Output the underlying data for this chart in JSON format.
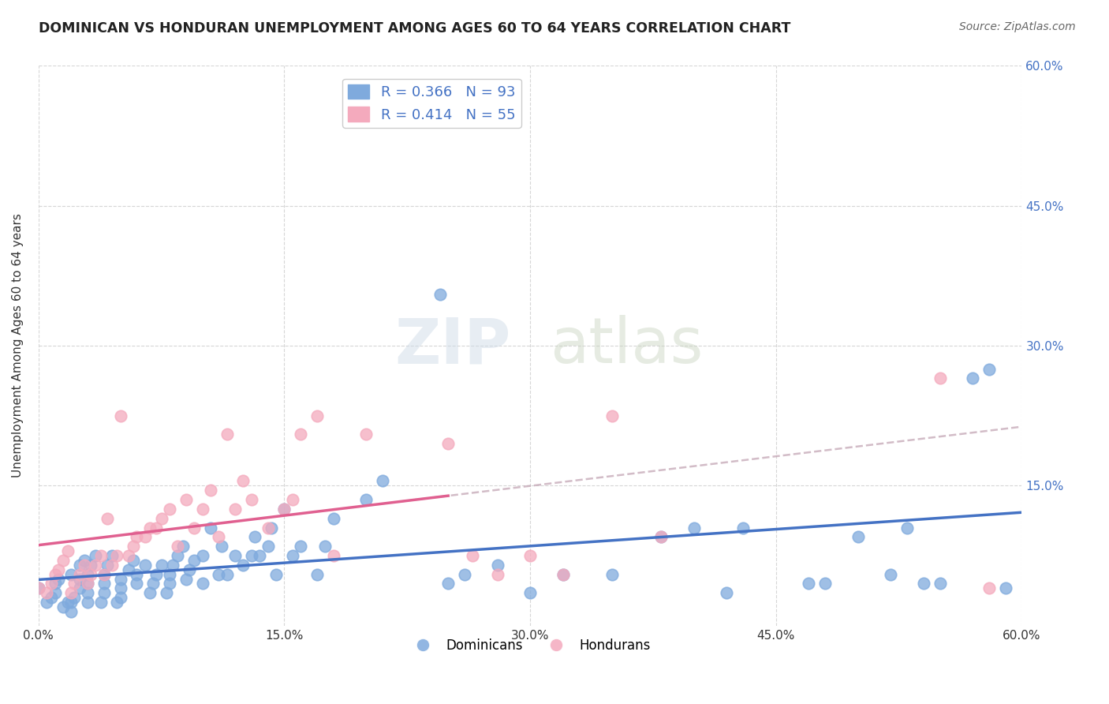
{
  "title": "DOMINICAN VS HONDURAN UNEMPLOYMENT AMONG AGES 60 TO 64 YEARS CORRELATION CHART",
  "source": "Source: ZipAtlas.com",
  "ylabel": "Unemployment Among Ages 60 to 64 years",
  "xlim": [
    0.0,
    0.6
  ],
  "ylim": [
    0.0,
    0.6
  ],
  "xticks": [
    0.0,
    0.15,
    0.3,
    0.45,
    0.6
  ],
  "yticks": [
    0.15,
    0.3,
    0.45,
    0.6
  ],
  "xtick_labels": [
    "0.0%",
    "15.0%",
    "30.0%",
    "45.0%",
    "60.0%"
  ],
  "ytick_labels": [
    "15.0%",
    "30.0%",
    "45.0%",
    "60.0%"
  ],
  "dominican_color": "#7faadd",
  "honduran_color": "#f4aabd",
  "dominican_line_color": "#4472c4",
  "honduran_line_color": "#e06090",
  "dominican_R": 0.366,
  "dominican_N": 93,
  "honduran_R": 0.414,
  "honduran_N": 55,
  "background_color": "#ffffff",
  "grid_color": "#cccccc",
  "watermark_zip": "ZIP",
  "watermark_atlas": "atlas",
  "dominican_x": [
    0.0,
    0.005,
    0.008,
    0.01,
    0.01,
    0.012,
    0.015,
    0.018,
    0.02,
    0.02,
    0.02,
    0.022,
    0.025,
    0.025,
    0.025,
    0.028,
    0.03,
    0.03,
    0.03,
    0.03,
    0.032,
    0.035,
    0.038,
    0.04,
    0.04,
    0.04,
    0.042,
    0.045,
    0.048,
    0.05,
    0.05,
    0.05,
    0.055,
    0.058,
    0.06,
    0.06,
    0.065,
    0.068,
    0.07,
    0.072,
    0.075,
    0.078,
    0.08,
    0.08,
    0.082,
    0.085,
    0.088,
    0.09,
    0.092,
    0.095,
    0.1,
    0.1,
    0.105,
    0.11,
    0.112,
    0.115,
    0.12,
    0.125,
    0.13,
    0.132,
    0.135,
    0.14,
    0.142,
    0.145,
    0.15,
    0.155,
    0.16,
    0.17,
    0.175,
    0.18,
    0.2,
    0.21,
    0.245,
    0.25,
    0.26,
    0.28,
    0.3,
    0.32,
    0.35,
    0.38,
    0.4,
    0.42,
    0.43,
    0.47,
    0.48,
    0.5,
    0.52,
    0.53,
    0.54,
    0.55,
    0.57,
    0.58,
    0.59
  ],
  "dominican_y": [
    0.04,
    0.025,
    0.03,
    0.035,
    0.045,
    0.05,
    0.02,
    0.025,
    0.015,
    0.025,
    0.055,
    0.03,
    0.04,
    0.05,
    0.065,
    0.07,
    0.025,
    0.035,
    0.045,
    0.055,
    0.065,
    0.075,
    0.025,
    0.035,
    0.045,
    0.055,
    0.065,
    0.075,
    0.025,
    0.03,
    0.04,
    0.05,
    0.06,
    0.07,
    0.045,
    0.055,
    0.065,
    0.035,
    0.045,
    0.055,
    0.065,
    0.035,
    0.045,
    0.055,
    0.065,
    0.075,
    0.085,
    0.05,
    0.06,
    0.07,
    0.045,
    0.075,
    0.105,
    0.055,
    0.085,
    0.055,
    0.075,
    0.065,
    0.075,
    0.095,
    0.075,
    0.085,
    0.105,
    0.055,
    0.125,
    0.075,
    0.085,
    0.055,
    0.085,
    0.115,
    0.135,
    0.155,
    0.355,
    0.045,
    0.055,
    0.065,
    0.035,
    0.055,
    0.055,
    0.095,
    0.105,
    0.035,
    0.105,
    0.045,
    0.045,
    0.095,
    0.055,
    0.105,
    0.045,
    0.045,
    0.265,
    0.275,
    0.04
  ],
  "honduran_x": [
    0.0,
    0.005,
    0.008,
    0.01,
    0.012,
    0.015,
    0.018,
    0.02,
    0.022,
    0.025,
    0.028,
    0.03,
    0.032,
    0.035,
    0.038,
    0.04,
    0.042,
    0.045,
    0.048,
    0.05,
    0.055,
    0.058,
    0.06,
    0.065,
    0.068,
    0.072,
    0.075,
    0.08,
    0.085,
    0.09,
    0.095,
    0.1,
    0.105,
    0.11,
    0.115,
    0.12,
    0.125,
    0.13,
    0.14,
    0.15,
    0.155,
    0.16,
    0.17,
    0.18,
    0.2,
    0.22,
    0.25,
    0.265,
    0.28,
    0.3,
    0.32,
    0.35,
    0.38,
    0.55,
    0.58
  ],
  "honduran_y": [
    0.04,
    0.035,
    0.045,
    0.055,
    0.06,
    0.07,
    0.08,
    0.035,
    0.045,
    0.055,
    0.065,
    0.045,
    0.055,
    0.065,
    0.075,
    0.055,
    0.115,
    0.065,
    0.075,
    0.225,
    0.075,
    0.085,
    0.095,
    0.095,
    0.105,
    0.105,
    0.115,
    0.125,
    0.085,
    0.135,
    0.105,
    0.125,
    0.145,
    0.095,
    0.205,
    0.125,
    0.155,
    0.135,
    0.105,
    0.125,
    0.135,
    0.205,
    0.225,
    0.075,
    0.205,
    0.555,
    0.195,
    0.075,
    0.055,
    0.075,
    0.055,
    0.225,
    0.095,
    0.265,
    0.04
  ]
}
